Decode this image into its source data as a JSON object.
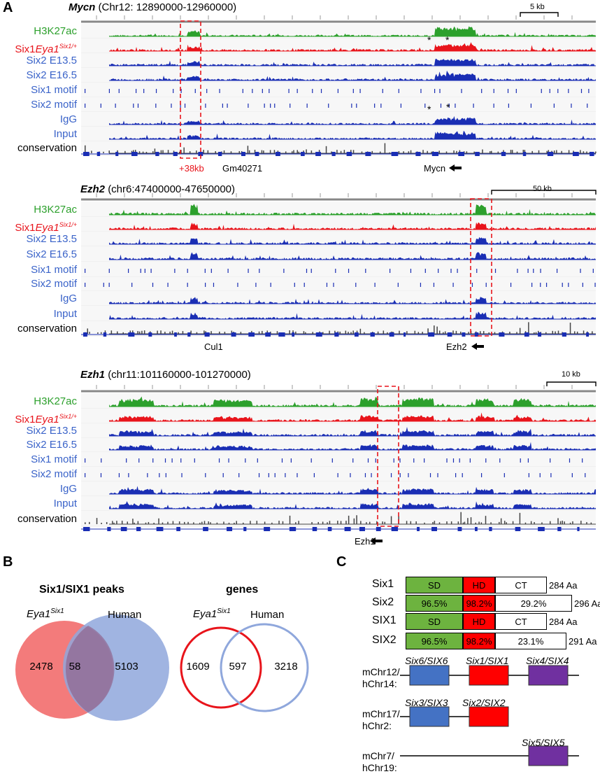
{
  "panel_labels": {
    "a": "A",
    "b": "B",
    "c": "C"
  },
  "colors": {
    "green": "#2ca02c",
    "red": "#e8141b",
    "blue": "#1a2eb4",
    "gray": "#444444",
    "track_label_blue": "#3a63c9"
  },
  "panel_a": {
    "track_labels": {
      "h3k27ac": "H3K27ac",
      "six1_prefix": "Six1",
      "six1_eya": "Eya1",
      "six1_sup": "Six1/+",
      "six2_e135": "Six2 E13.5",
      "six2_e165": "Six2 E16.5",
      "six1_motif": "Six1 motif",
      "six2_motif": "Six2 motif",
      "igg": "IgG",
      "input": "Input",
      "conservation": "conservation"
    },
    "loci": [
      {
        "gene": "Mycn",
        "coords": "(Chr12: 12890000-12960000)",
        "scalebar": "5 kb",
        "scales": [
          "5-35",
          "1-25",
          "1-30",
          "1-35",
          "",
          "",
          "0-20",
          "0-20",
          "0-2"
        ],
        "annotations": [
          "+38kb",
          "Gm40271",
          "Mycn"
        ]
      },
      {
        "gene": "Ezh2",
        "coords": "(chr6:47400000-47650000)",
        "scalebar": "50 kb",
        "scales": [
          "5-35",
          "1-25",
          "1-30",
          "1-35",
          "",
          "",
          "0-20",
          "0-20",
          "0-2"
        ],
        "annotations": [
          "Cul1",
          "Ezh2"
        ]
      },
      {
        "gene": "Ezh1",
        "coords": "(chr11:101160000-101270000)",
        "scalebar": "10 kb",
        "scales": [
          "5-35",
          "1-25",
          "1-30",
          "1-35",
          "",
          "",
          "0-20",
          "0-20",
          "0-2"
        ],
        "annotations": [
          "Ezh1"
        ]
      }
    ]
  },
  "panel_b": {
    "peaks": {
      "title": "Six1/SIX1 peaks",
      "left_label": "Eya1",
      "left_sup": "Six1",
      "right_label": "Human",
      "left_only": "2478",
      "overlap": "58",
      "right_only": "5103"
    },
    "genes": {
      "title": "genes",
      "left_label": "Eya1",
      "left_sup": "Six1",
      "right_label": "Human",
      "left_only": "1609",
      "overlap": "597",
      "right_only": "3218"
    }
  },
  "panel_c": {
    "proteins": [
      {
        "name": "Six1",
        "sd": "SD",
        "hd": "HD",
        "ct": "CT",
        "length": "284 Aa"
      },
      {
        "name": "Six2",
        "sd": "96.5%",
        "hd": "98.2%",
        "ct": "29.2%",
        "length": "296 Aa"
      },
      {
        "name": "SIX1",
        "sd": "SD",
        "hd": "HD",
        "ct": "CT",
        "length": "284 Aa"
      },
      {
        "name": "SIX2",
        "sd": "96.5%",
        "hd": "98.2%",
        "ct": "23.1%",
        "length": "291 Aa"
      }
    ],
    "clusters": [
      {
        "chr": "mChr12/",
        "chr2": "hChr14:",
        "genes": [
          "Six6/SIX6",
          "Six1/SIX1",
          "Six4/SIX4"
        ]
      },
      {
        "chr": "mChr17/",
        "chr2": "hChr2:",
        "genes": [
          "Six3/SIX3",
          "Six2/SIX2"
        ]
      },
      {
        "chr": "mChr7/",
        "chr2": "hChr19:",
        "genes": [
          "Six5/SIX5"
        ]
      }
    ]
  }
}
